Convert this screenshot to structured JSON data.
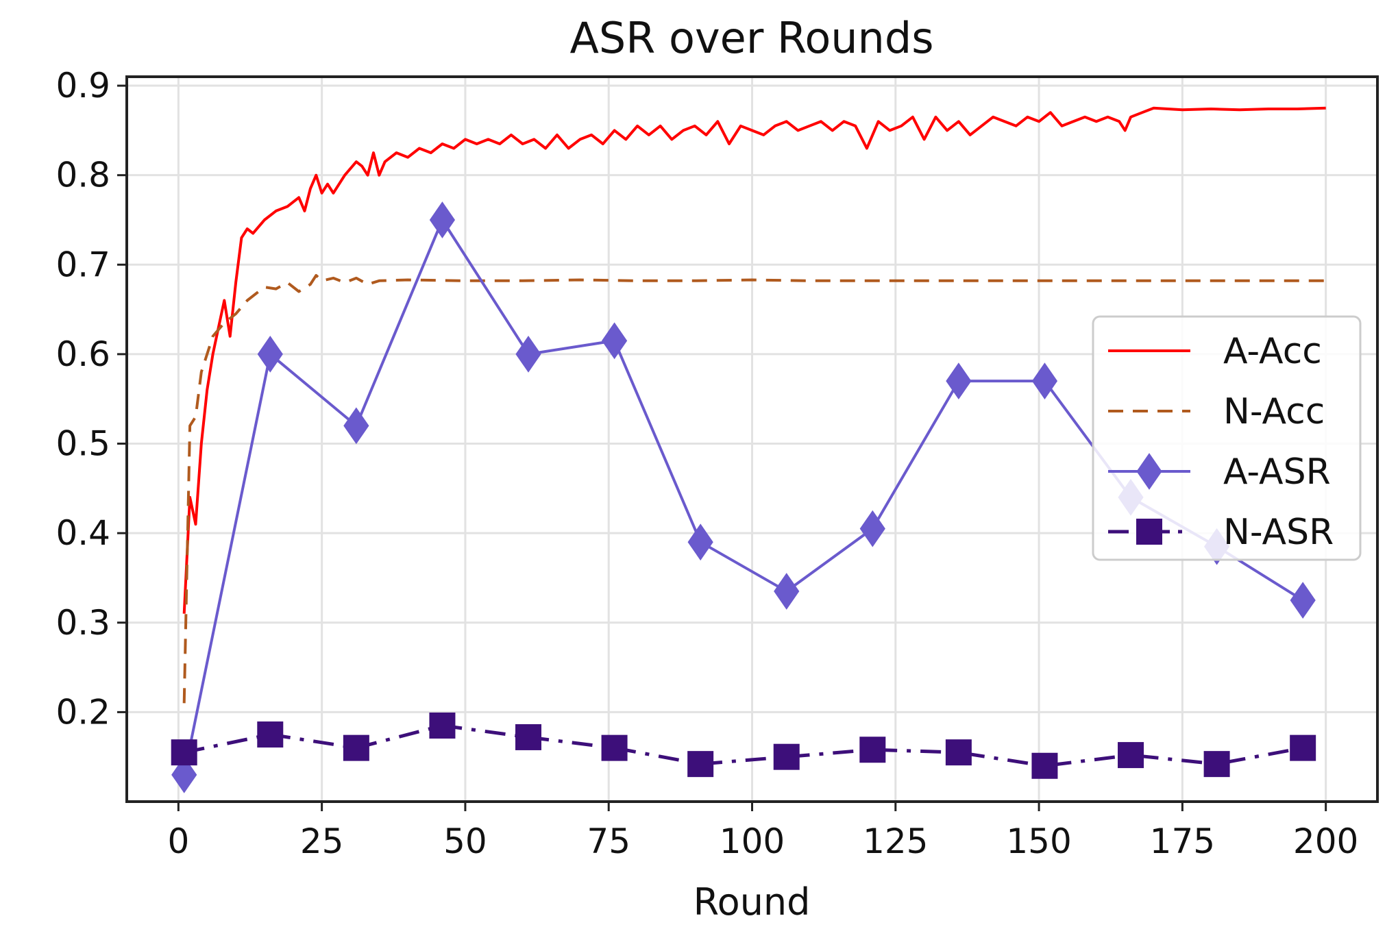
{
  "chart_data": {
    "type": "line",
    "title": "ASR over Rounds",
    "xlabel": "Round",
    "ylabel": "",
    "xlim": [
      -9,
      209
    ],
    "ylim": [
      0.1,
      0.91
    ],
    "xticks": [
      0,
      25,
      50,
      75,
      100,
      125,
      150,
      175,
      200
    ],
    "yticks": [
      0.2,
      0.3,
      0.4,
      0.5,
      0.6,
      0.7,
      0.8,
      0.9
    ],
    "grid": true,
    "legend_position": "center-right",
    "series": [
      {
        "name": "A-Acc",
        "color": "#ff0000",
        "style": "solid",
        "marker": "none",
        "x": [
          1,
          2,
          3,
          4,
          5,
          6,
          7,
          8,
          9,
          10,
          11,
          12,
          13,
          15,
          17,
          19,
          21,
          22,
          23,
          24,
          25,
          26,
          27,
          29,
          31,
          32,
          33,
          34,
          35,
          36,
          38,
          40,
          42,
          44,
          46,
          48,
          50,
          52,
          54,
          56,
          58,
          60,
          62,
          64,
          66,
          68,
          70,
          72,
          74,
          76,
          78,
          80,
          82,
          84,
          86,
          88,
          90,
          92,
          94,
          96,
          98,
          100,
          102,
          104,
          106,
          108,
          110,
          112,
          114,
          116,
          118,
          120,
          121,
          122,
          124,
          126,
          128,
          130,
          132,
          134,
          136,
          138,
          140,
          142,
          144,
          146,
          148,
          150,
          152,
          154,
          156,
          158,
          160,
          162,
          164,
          165,
          166,
          168,
          170,
          175,
          180,
          185,
          190,
          195,
          200
        ],
        "y": [
          0.31,
          0.44,
          0.41,
          0.5,
          0.56,
          0.6,
          0.63,
          0.66,
          0.62,
          0.68,
          0.73,
          0.74,
          0.735,
          0.75,
          0.76,
          0.765,
          0.775,
          0.76,
          0.785,
          0.8,
          0.78,
          0.79,
          0.78,
          0.8,
          0.815,
          0.81,
          0.8,
          0.825,
          0.8,
          0.815,
          0.825,
          0.82,
          0.83,
          0.825,
          0.835,
          0.83,
          0.84,
          0.835,
          0.84,
          0.835,
          0.845,
          0.835,
          0.84,
          0.83,
          0.845,
          0.83,
          0.84,
          0.845,
          0.835,
          0.85,
          0.84,
          0.855,
          0.845,
          0.855,
          0.84,
          0.85,
          0.855,
          0.845,
          0.86,
          0.835,
          0.855,
          0.85,
          0.845,
          0.855,
          0.86,
          0.85,
          0.855,
          0.86,
          0.85,
          0.86,
          0.855,
          0.83,
          0.845,
          0.86,
          0.85,
          0.855,
          0.865,
          0.84,
          0.865,
          0.85,
          0.86,
          0.845,
          0.855,
          0.865,
          0.86,
          0.855,
          0.865,
          0.86,
          0.87,
          0.855,
          0.86,
          0.865,
          0.86,
          0.865,
          0.86,
          0.85,
          0.865,
          0.87,
          0.875,
          0.873,
          0.874,
          0.873,
          0.874,
          0.874,
          0.875
        ]
      },
      {
        "name": "N-Acc",
        "color": "#b05a1e",
        "style": "dashed",
        "marker": "none",
        "x": [
          1,
          2,
          3,
          4,
          5,
          6,
          8,
          10,
          12,
          14,
          15,
          17,
          19,
          21,
          23,
          24,
          25,
          27,
          29,
          31,
          33,
          35,
          40,
          50,
          60,
          70,
          80,
          90,
          100,
          110,
          120,
          130,
          140,
          150,
          160,
          170,
          180,
          190,
          200
        ],
        "y": [
          0.21,
          0.52,
          0.53,
          0.58,
          0.6,
          0.62,
          0.635,
          0.645,
          0.66,
          0.67,
          0.675,
          0.673,
          0.68,
          0.67,
          0.678,
          0.688,
          0.682,
          0.685,
          0.68,
          0.685,
          0.678,
          0.682,
          0.683,
          0.682,
          0.682,
          0.683,
          0.682,
          0.682,
          0.683,
          0.682,
          0.682,
          0.682,
          0.682,
          0.682,
          0.682,
          0.682,
          0.682,
          0.682,
          0.682
        ]
      },
      {
        "name": "A-ASR",
        "color": "#6a5acd",
        "style": "solid",
        "marker": "diamond",
        "x": [
          1,
          16,
          31,
          46,
          61,
          76,
          91,
          106,
          121,
          136,
          151,
          166,
          181,
          196
        ],
        "y": [
          0.13,
          0.6,
          0.52,
          0.75,
          0.6,
          0.615,
          0.39,
          0.335,
          0.405,
          0.57,
          0.57,
          0.44,
          0.385,
          0.325
        ]
      },
      {
        "name": "N-ASR",
        "color": "#3d0f7a",
        "style": "dashdot",
        "marker": "square",
        "x": [
          1,
          16,
          31,
          46,
          61,
          76,
          91,
          106,
          121,
          136,
          151,
          166,
          181,
          196
        ],
        "y": [
          0.155,
          0.175,
          0.16,
          0.185,
          0.172,
          0.16,
          0.142,
          0.15,
          0.158,
          0.155,
          0.14,
          0.152,
          0.142,
          0.16
        ]
      }
    ]
  }
}
